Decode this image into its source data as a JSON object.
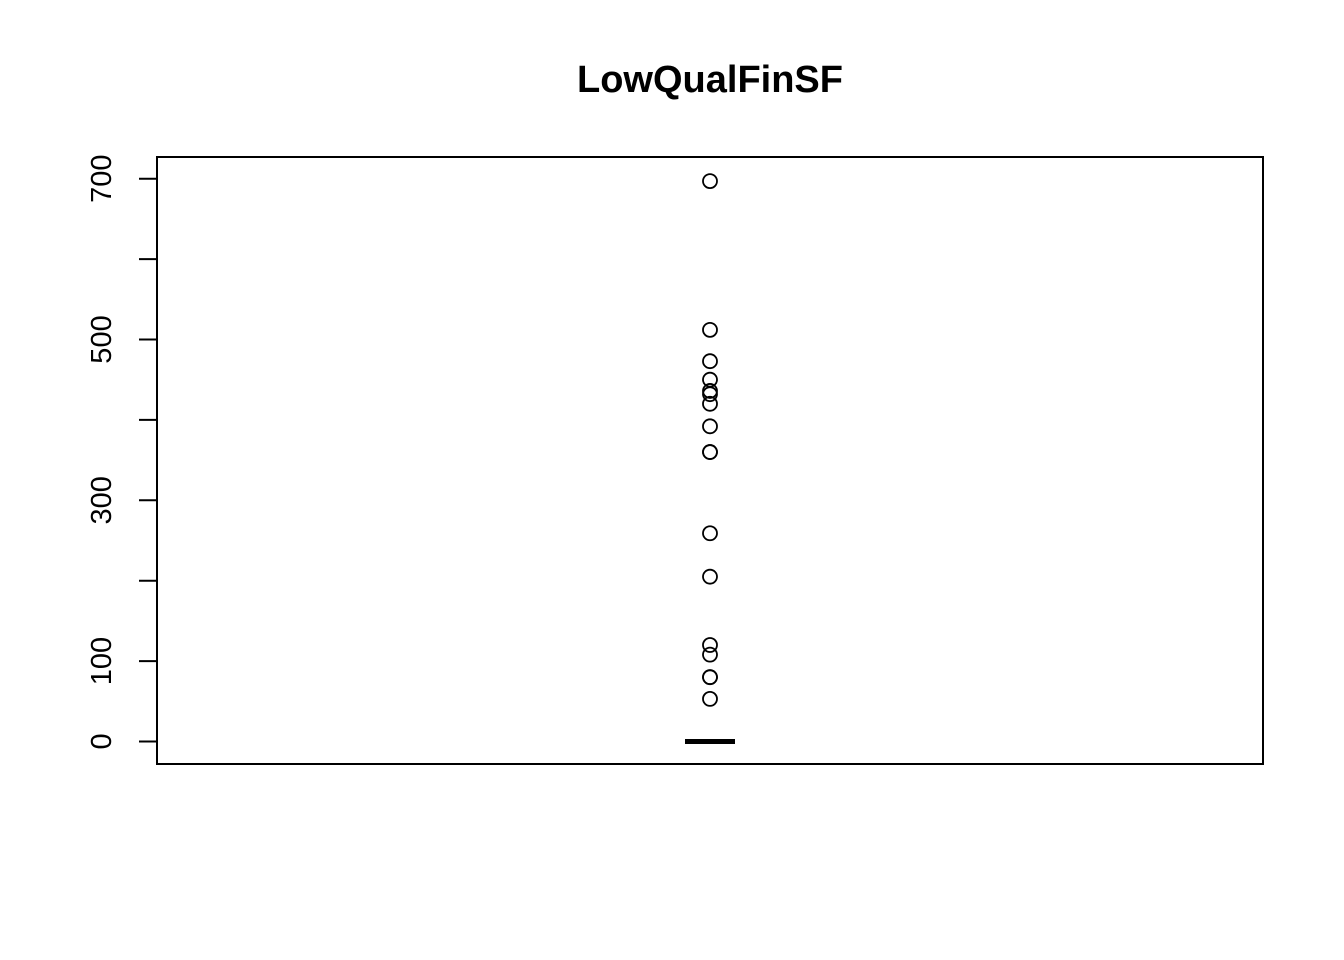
{
  "chart_data": {
    "type": "boxplot",
    "title": "LowQualFinSF",
    "xlabel": "",
    "ylabel": "",
    "ylim": [
      -28,
      727
    ],
    "yticks": [
      0,
      100,
      200,
      300,
      400,
      500,
      600,
      700
    ],
    "ytick_labels": [
      "0",
      "100",
      "",
      "300",
      "",
      "500",
      "",
      "700"
    ],
    "box": {
      "min": 0,
      "q1": 0,
      "median": 0,
      "q3": 0,
      "max": 0
    },
    "outliers": [
      697,
      512,
      473,
      450,
      436,
      432,
      420,
      392,
      360,
      360,
      259,
      205,
      120,
      108,
      80,
      80,
      53
    ],
    "grid": false,
    "legend": "none",
    "colors": {
      "box": "#000000",
      "points": "#000000",
      "background": "#ffffff"
    }
  }
}
